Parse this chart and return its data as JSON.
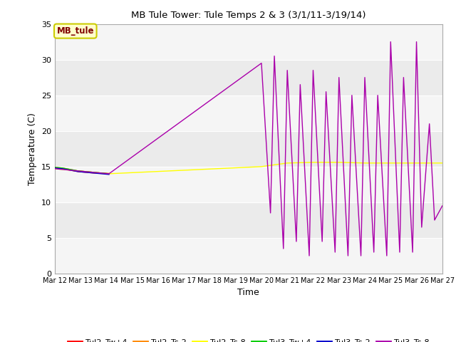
{
  "title": "MB Tule Tower: Tule Temps 2 & 3 (3/1/11-3/19/14)",
  "xlabel": "Time",
  "ylabel": "Temperature (C)",
  "ylim": [
    0,
    35
  ],
  "xlim": [
    0,
    15
  ],
  "bg_color": "#ebebeb",
  "fig_color": "#ffffff",
  "legend_label": "MB_tule",
  "legend_fg": "#800000",
  "legend_bg": "#ffffcc",
  "legend_border": "#cccc00",
  "xtick_labels": [
    "Mar 12",
    "Mar 13",
    "Mar 14",
    "Mar 15",
    "Mar 16",
    "Mar 17",
    "Mar 18",
    "Mar 19",
    "Mar 20",
    "Mar 21",
    "Mar 22",
    "Mar 23",
    "Mar 24",
    "Mar 25",
    "Mar 26",
    "Mar 27"
  ],
  "ytick_values": [
    0,
    5,
    10,
    15,
    20,
    25,
    30,
    35
  ],
  "series": {
    "Tul2_Tw+4": {
      "color": "#ff0000",
      "x": [
        0,
        0.3,
        0.6,
        0.9,
        1.2,
        1.5,
        1.8,
        2.1
      ],
      "y": [
        14.8,
        14.7,
        14.5,
        14.3,
        14.2,
        14.1,
        14.05,
        14.0
      ]
    },
    "Tul2_Ts-2": {
      "color": "#ff8800",
      "x": [
        0,
        0.3,
        0.6,
        0.9,
        1.2,
        1.5,
        1.8,
        2.1
      ],
      "y": [
        14.9,
        14.8,
        14.6,
        14.4,
        14.3,
        14.2,
        14.1,
        14.05
      ]
    },
    "Tul2_Ts-8": {
      "color": "#ffff00",
      "x": [
        0,
        2.1,
        8.0,
        9.0,
        10.0,
        11.0,
        12.0,
        13.0,
        14.0,
        14.5,
        15.0
      ],
      "y": [
        14.7,
        14.0,
        15.0,
        15.5,
        15.6,
        15.6,
        15.5,
        15.5,
        15.5,
        15.5,
        15.5
      ]
    },
    "Tul3_Tw+4": {
      "color": "#00cc00",
      "x": [
        0,
        0.3,
        0.6,
        0.9,
        1.2,
        1.5,
        1.8,
        2.1
      ],
      "y": [
        14.9,
        14.8,
        14.6,
        14.4,
        14.3,
        14.2,
        14.1,
        14.0
      ]
    },
    "Tul3_Ts-2": {
      "color": "#0000cc",
      "x": [
        0,
        0.3,
        0.6,
        0.9,
        1.2,
        1.5,
        1.8,
        2.1
      ],
      "y": [
        14.8,
        14.7,
        14.5,
        14.3,
        14.2,
        14.1,
        14.0,
        13.9
      ]
    },
    "Tul3_Ts-8": {
      "color": "#aa00aa",
      "x": [
        0,
        2.1,
        8.0,
        8.35,
        8.5,
        8.85,
        9.0,
        9.35,
        9.5,
        9.85,
        10.0,
        10.35,
        10.5,
        10.85,
        11.0,
        11.35,
        11.5,
        11.85,
        12.0,
        12.35,
        12.5,
        12.85,
        13.0,
        13.35,
        13.5,
        13.85,
        14.0,
        14.2,
        14.5,
        14.7,
        15.0
      ],
      "y": [
        14.7,
        14.0,
        29.5,
        8.5,
        30.5,
        3.5,
        28.5,
        4.5,
        26.5,
        2.5,
        28.5,
        4.5,
        25.5,
        3.0,
        27.5,
        2.5,
        25.0,
        2.5,
        27.5,
        3.0,
        25.0,
        2.5,
        32.5,
        3.0,
        27.5,
        3.0,
        32.5,
        6.5,
        21.0,
        7.5,
        9.5
      ]
    }
  }
}
